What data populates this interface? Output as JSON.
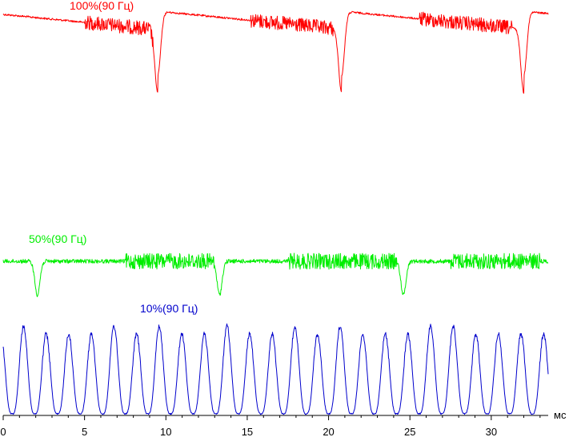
{
  "chart_data": {
    "type": "line",
    "xlabel": "мс",
    "xlim": [
      0,
      33.5
    ],
    "x_ticks": [
      0,
      5,
      10,
      15,
      20,
      25,
      30
    ],
    "x_tick_labels": [
      "0",
      "5",
      "10",
      "15",
      "20",
      "25",
      "30"
    ],
    "grid": false,
    "legend": "labels above each trace",
    "series": [
      {
        "name": "100%(90 Гц)",
        "color": "#ff0000",
        "dips_at_ms": [
          9.5,
          20.8,
          32.0
        ],
        "noise_bands_ms": [
          [
            5.0,
            9.2
          ],
          [
            15.2,
            20.3
          ],
          [
            25.6,
            31.3
          ]
        ]
      },
      {
        "name": "50%(90 Гц)",
        "color": "#00ee00",
        "dips_at_ms": [
          2.1,
          13.3,
          24.6
        ],
        "noise_bands_ms": [
          [
            7.5,
            13.0
          ],
          [
            17.5,
            24.2
          ],
          [
            27.5,
            33.0
          ]
        ]
      },
      {
        "name": "10%(90 Гц)",
        "color": "#0000cc",
        "pulse_period_ms": 1.39,
        "first_peak_ms": 1.25
      }
    ]
  }
}
